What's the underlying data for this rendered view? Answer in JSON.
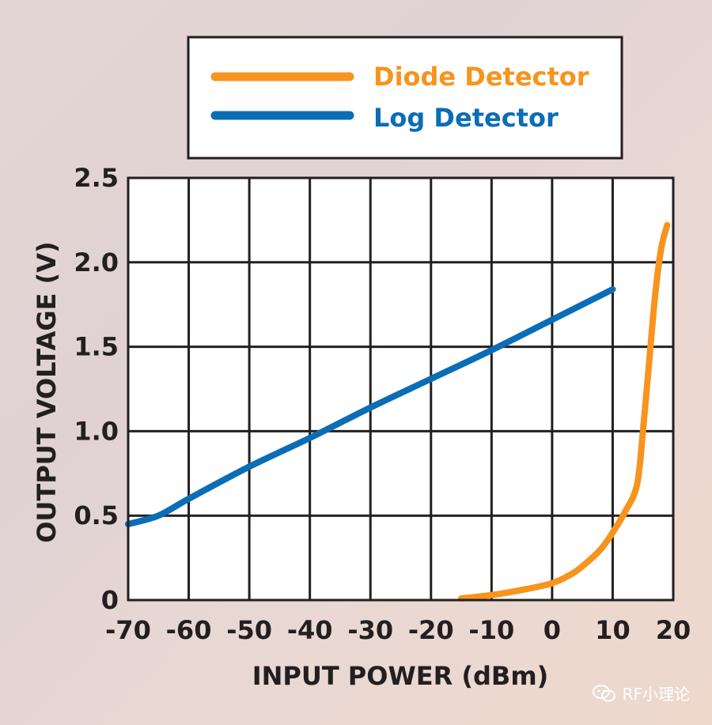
{
  "chart_data": {
    "type": "line",
    "xlabel": "INPUT POWER (dBm)",
    "ylabel": "OUTPUT VOLTAGE (V)",
    "xlim": [
      -70,
      20
    ],
    "ylim": [
      0,
      2.5
    ],
    "x_ticks": [
      -70,
      -60,
      -50,
      -40,
      -30,
      -20,
      -10,
      0,
      10,
      20
    ],
    "x_tick_labels": [
      "-70",
      "-60",
      "-50",
      "-40",
      "-30",
      "-20",
      "-10",
      "0",
      "10",
      "20"
    ],
    "y_ticks": [
      0,
      0.5,
      1.0,
      1.5,
      2.0,
      2.5
    ],
    "y_tick_labels": [
      "0",
      "0.5",
      "1.0",
      "1.5",
      "2.0",
      "2.5"
    ],
    "grid": true,
    "legend_position": "top",
    "series": [
      {
        "name": "Diode Detector",
        "color": "#f7941d",
        "points": [
          [
            -15,
            0.01
          ],
          [
            -10,
            0.03
          ],
          [
            -5,
            0.06
          ],
          [
            0,
            0.1
          ],
          [
            3,
            0.15
          ],
          [
            5,
            0.2
          ],
          [
            8,
            0.3
          ],
          [
            10,
            0.4
          ],
          [
            12,
            0.52
          ],
          [
            14,
            0.68
          ],
          [
            15,
            1.0
          ],
          [
            16,
            1.4
          ],
          [
            17,
            1.8
          ],
          [
            18,
            2.08
          ],
          [
            19,
            2.22
          ]
        ]
      },
      {
        "name": "Log Detector",
        "color": "#0a6db6",
        "points": [
          [
            -70,
            0.45
          ],
          [
            -65,
            0.5
          ],
          [
            -60,
            0.6
          ],
          [
            -50,
            0.79
          ],
          [
            -40,
            0.96
          ],
          [
            -30,
            1.14
          ],
          [
            -20,
            1.31
          ],
          [
            -10,
            1.48
          ],
          [
            0,
            1.66
          ],
          [
            10,
            1.84
          ]
        ]
      }
    ]
  },
  "watermark": {
    "text": "RF小理论",
    "icon": "wechat-icon"
  }
}
